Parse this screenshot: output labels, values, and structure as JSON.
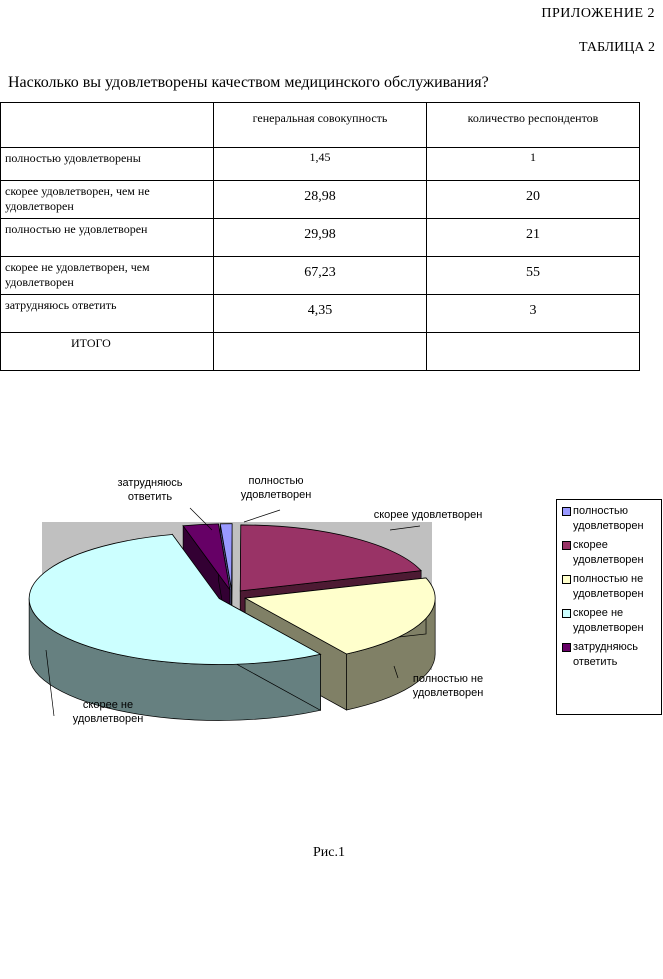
{
  "header": {
    "appendix": "ПРИЛОЖЕНИЕ  2",
    "table_label": "ТАБЛИЦА 2",
    "question": "Насколько вы удовлетворены качеством медицинского обслуживания?"
  },
  "table": {
    "columns": [
      "",
      "генеральная совокупность",
      "количество респондентов"
    ],
    "rows": [
      {
        "label": "полностью удовлетворены",
        "share": "1,45",
        "count": "1"
      },
      {
        "label": "скорее удовлетворен, чем не удовлетворен",
        "share": "28,98",
        "count": "20"
      },
      {
        "label": "полностью не удовлетворен",
        "share": "29,98",
        "count": "21"
      },
      {
        "label": "скорее не удовлетворен, чем удовлетворен",
        "share": "67,23",
        "count": "55"
      },
      {
        "label": "затрудняюсь ответить",
        "share": "4,35",
        "count": "3"
      },
      {
        "label": "ИТОГО",
        "share": "",
        "count": ""
      }
    ]
  },
  "chart_data": {
    "type": "pie",
    "style": "3d-exploded",
    "legend_position": "right",
    "slices": [
      {
        "legend": "полностью удовлетворен",
        "label": "полностью удовлетворен",
        "value": 1,
        "color": "#9999ff",
        "side": "#4d4d80"
      },
      {
        "legend": "скорее удовлетворен",
        "label": "скорее удовлетворен",
        "value": 20,
        "color": "#993366",
        "side": "#4d1a33"
      },
      {
        "legend": "полностью не удовлетворен",
        "label": "полностью не удовлетворен",
        "value": 21,
        "color": "#ffffcc",
        "side": "#808066"
      },
      {
        "legend": "скорее не удовлетворен",
        "label": "скорее не удовлетворен",
        "value": 55,
        "color": "#ccffff",
        "side": "#668080"
      },
      {
        "legend": "затрудняюсь ответить",
        "label": "затрудняюсь ответить",
        "value": 3,
        "color": "#660066",
        "side": "#330033"
      }
    ],
    "plot_background": "#c0c0c0"
  },
  "caption": "Рис.1"
}
